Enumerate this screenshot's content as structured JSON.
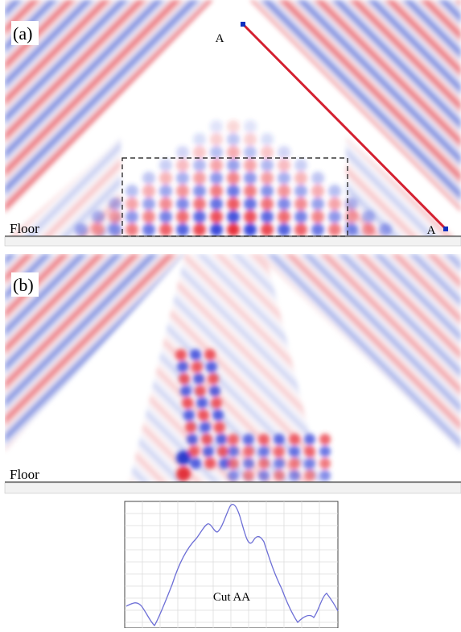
{
  "panel_a": {
    "label": "(a)",
    "point_top": "A",
    "point_bottom": "A",
    "floor": "Floor"
  },
  "panel_b": {
    "label": "(b)",
    "floor": "Floor"
  },
  "plot": {
    "label": "Cut AA"
  }
}
